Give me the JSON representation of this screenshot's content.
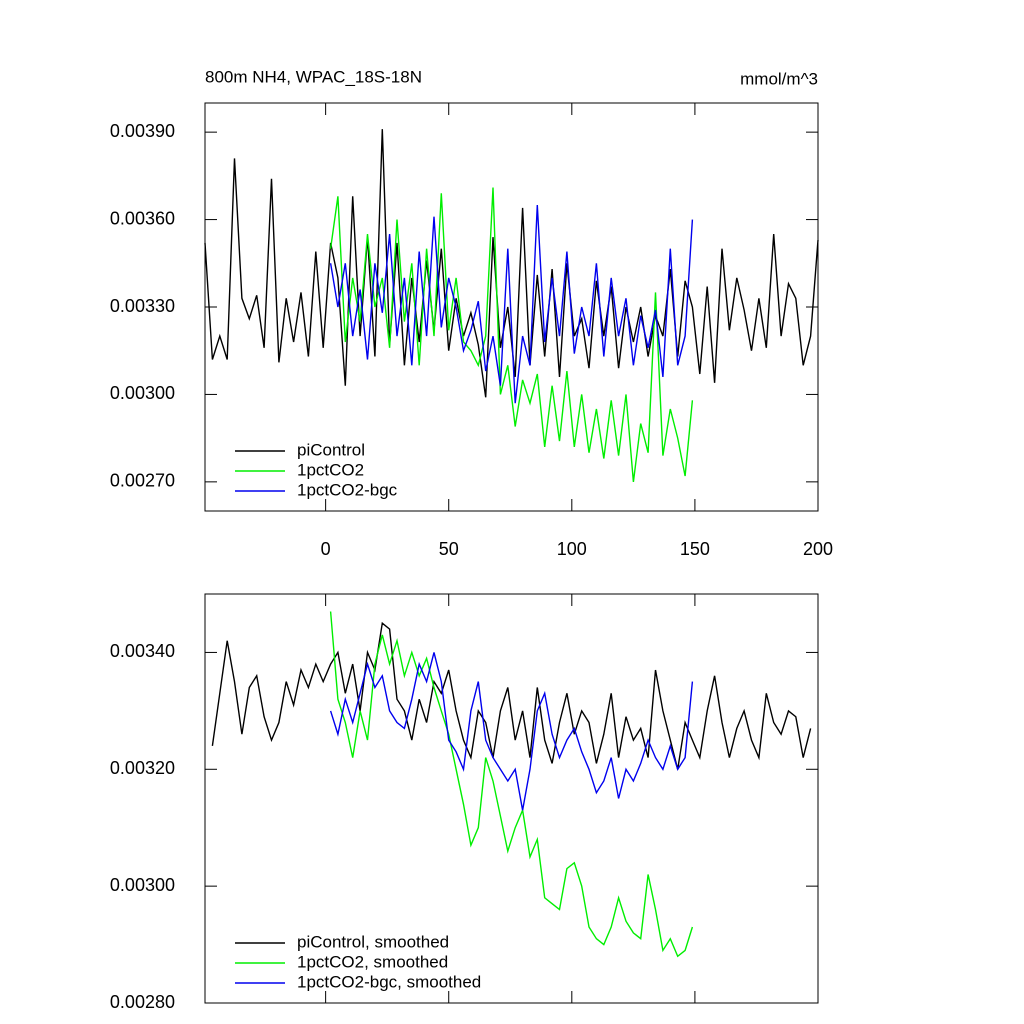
{
  "chart_data": [
    {
      "type": "line",
      "title": "800m NH4, WPAC_18S-18N",
      "units": "mmol/m^3",
      "xlim": [
        -49,
        200
      ],
      "xticks": [
        0,
        50,
        100,
        150,
        200
      ],
      "ylim": [
        0.0026,
        0.004
      ],
      "yticks": [
        {
          "value": 0.0027,
          "label": "0.00270"
        },
        {
          "value": 0.003,
          "label": "0.00300"
        },
        {
          "value": 0.0033,
          "label": "0.00330"
        },
        {
          "value": 0.0036,
          "label": "0.00360"
        },
        {
          "value": 0.0039,
          "label": "0.00390"
        }
      ],
      "legend": "lower left",
      "x": [
        -49,
        -46,
        -43,
        -40,
        -37,
        -34,
        -31,
        -28,
        -25,
        -22,
        -19,
        -16,
        -13,
        -10,
        -7,
        -4,
        -1,
        2,
        5,
        8,
        11,
        14,
        17,
        20,
        23,
        26,
        29,
        32,
        35,
        38,
        41,
        44,
        47,
        50,
        53,
        56,
        59,
        62,
        65,
        68,
        71,
        74,
        77,
        80,
        83,
        86,
        89,
        92,
        95,
        98,
        101,
        104,
        107,
        110,
        113,
        116,
        119,
        122,
        125,
        128,
        131,
        134,
        137,
        140,
        143,
        146,
        149,
        152,
        155,
        158,
        161,
        164,
        167,
        170,
        173,
        176,
        179,
        182,
        185,
        188,
        191,
        194,
        197,
        200
      ],
      "series": [
        {
          "name": "piControl",
          "color": "#000000",
          "values": [
            0.00352,
            0.00312,
            0.0032,
            0.00312,
            0.00381,
            0.00333,
            0.00326,
            0.00334,
            0.00316,
            0.00374,
            0.00311,
            0.00333,
            0.00318,
            0.00335,
            0.00313,
            0.00349,
            0.00316,
            0.00352,
            0.0034,
            0.00303,
            0.00368,
            0.0032,
            0.00354,
            0.00313,
            0.00391,
            0.00317,
            0.00352,
            0.0031,
            0.0034,
            0.00318,
            0.00346,
            0.00322,
            0.0035,
            0.00315,
            0.00333,
            0.0032,
            0.00328,
            0.00317,
            0.00299,
            0.00354,
            0.00316,
            0.0033,
            0.00306,
            0.00364,
            0.0031,
            0.00341,
            0.00313,
            0.00343,
            0.00306,
            0.00345,
            0.0032,
            0.00326,
            0.00309,
            0.00339,
            0.0032,
            0.00337,
            0.00309,
            0.0033,
            0.00318,
            0.0033,
            0.00313,
            0.00327,
            0.0032,
            0.00343,
            0.00313,
            0.00339,
            0.0033,
            0.00307,
            0.00337,
            0.00304,
            0.0035,
            0.00322,
            0.0034,
            0.00329,
            0.00315,
            0.00333,
            0.00316,
            0.00355,
            0.0032,
            0.00338,
            0.00333,
            0.0031,
            0.0032,
            0.00353
          ]
        },
        {
          "name": "1pctCO2",
          "color": "#00ee00",
          "values": [
            null,
            null,
            null,
            null,
            null,
            null,
            null,
            null,
            null,
            null,
            null,
            null,
            null,
            null,
            null,
            null,
            null,
            0.0035,
            0.00368,
            0.00318,
            0.0034,
            0.00325,
            0.00355,
            0.0033,
            0.0034,
            0.00316,
            0.0036,
            0.00325,
            0.00345,
            0.0031,
            0.0035,
            0.0032,
            0.00369,
            0.00322,
            0.0034,
            0.00318,
            0.00315,
            0.0031,
            0.0032,
            0.00371,
            0.003,
            0.0031,
            0.00289,
            0.00305,
            0.00297,
            0.00307,
            0.00282,
            0.00303,
            0.00284,
            0.00308,
            0.00282,
            0.003,
            0.0028,
            0.00295,
            0.00278,
            0.00298,
            0.00279,
            0.003,
            0.0027,
            0.0029,
            0.0028,
            0.00335,
            0.00279,
            0.00295,
            0.00285,
            0.00272,
            0.00298,
            null,
            null,
            null,
            null,
            null,
            null,
            null,
            null,
            null,
            null,
            null,
            null,
            null,
            null,
            null,
            null,
            null
          ]
        },
        {
          "name": "1pctCO2-bgc",
          "color": "#0000ee",
          "values": [
            null,
            null,
            null,
            null,
            null,
            null,
            null,
            null,
            null,
            null,
            null,
            null,
            null,
            null,
            null,
            null,
            null,
            0.00345,
            0.0033,
            0.00345,
            0.0032,
            0.00336,
            0.00312,
            0.00345,
            0.00328,
            0.00355,
            0.0032,
            0.0034,
            0.0031,
            0.00349,
            0.0032,
            0.00361,
            0.00323,
            0.0034,
            0.0033,
            0.00315,
            0.00322,
            0.00332,
            0.00308,
            0.0032,
            0.00303,
            0.0035,
            0.00297,
            0.0032,
            0.0031,
            0.00365,
            0.00318,
            0.0034,
            0.0032,
            0.00349,
            0.00314,
            0.0033,
            0.0032,
            0.00345,
            0.00313,
            0.0034,
            0.0032,
            0.00333,
            0.0031,
            0.00327,
            0.00316,
            0.00329,
            0.00306,
            0.0035,
            0.0031,
            0.0032,
            0.0036,
            null,
            null,
            null,
            null,
            null,
            null,
            null,
            null,
            null,
            null,
            null,
            null,
            null,
            null,
            null,
            null,
            null
          ]
        }
      ]
    },
    {
      "type": "line",
      "xlim": [
        -49,
        200
      ],
      "ylim": [
        0.0028,
        0.0035
      ],
      "yticks": [
        {
          "value": 0.0028,
          "label": "0.00280"
        },
        {
          "value": 0.003,
          "label": "0.00300"
        },
        {
          "value": 0.0032,
          "label": "0.00320"
        },
        {
          "value": 0.0034,
          "label": "0.00340"
        }
      ],
      "legend": "lower left",
      "x": [
        -49,
        -46,
        -43,
        -40,
        -37,
        -34,
        -31,
        -28,
        -25,
        -22,
        -19,
        -16,
        -13,
        -10,
        -7,
        -4,
        -1,
        2,
        5,
        8,
        11,
        14,
        17,
        20,
        23,
        26,
        29,
        32,
        35,
        38,
        41,
        44,
        47,
        50,
        53,
        56,
        59,
        62,
        65,
        68,
        71,
        74,
        77,
        80,
        83,
        86,
        89,
        92,
        95,
        98,
        101,
        104,
        107,
        110,
        113,
        116,
        119,
        122,
        125,
        128,
        131,
        134,
        137,
        140,
        143,
        146,
        149,
        152,
        155,
        158,
        161,
        164,
        167,
        170,
        173,
        176,
        179,
        182,
        185,
        188,
        191,
        194,
        197,
        200
      ],
      "series": [
        {
          "name": "piControl, smoothed",
          "color": "#000000",
          "values": [
            null,
            0.00324,
            0.00333,
            0.00342,
            0.00335,
            0.00326,
            0.00334,
            0.00336,
            0.00329,
            0.00325,
            0.00328,
            0.00335,
            0.00331,
            0.00337,
            0.00334,
            0.00338,
            0.00335,
            0.00338,
            0.0034,
            0.00333,
            0.00338,
            0.0033,
            0.0034,
            0.00337,
            0.00345,
            0.00344,
            0.00332,
            0.0033,
            0.00325,
            0.00332,
            0.00328,
            0.00335,
            0.00333,
            0.00337,
            0.0033,
            0.00325,
            0.00322,
            0.0033,
            0.00328,
            0.00322,
            0.0033,
            0.00334,
            0.00325,
            0.0033,
            0.00322,
            0.00334,
            0.00325,
            0.00321,
            0.00328,
            0.00333,
            0.00326,
            0.0033,
            0.00328,
            0.00321,
            0.00326,
            0.00333,
            0.00322,
            0.00329,
            0.00325,
            0.00327,
            0.00322,
            0.00337,
            0.0033,
            0.00325,
            0.0032,
            0.00328,
            0.00325,
            0.00322,
            0.0033,
            0.00336,
            0.00328,
            0.00322,
            0.00327,
            0.0033,
            0.00325,
            0.00322,
            0.00333,
            0.00328,
            0.00326,
            0.0033,
            0.00329,
            0.00322,
            0.00327,
            null
          ]
        },
        {
          "name": "1pctCO2, smoothed",
          "color": "#00ee00",
          "values": [
            null,
            null,
            null,
            null,
            null,
            null,
            null,
            null,
            null,
            null,
            null,
            null,
            null,
            null,
            null,
            null,
            null,
            0.00347,
            0.00332,
            0.00328,
            0.00322,
            0.0033,
            0.00325,
            0.00338,
            0.00343,
            0.00338,
            0.00342,
            0.00336,
            0.0034,
            0.00336,
            0.00339,
            0.00334,
            0.0033,
            0.00326,
            0.0032,
            0.00314,
            0.00307,
            0.0031,
            0.00322,
            0.00318,
            0.00312,
            0.00306,
            0.0031,
            0.00313,
            0.00305,
            0.00308,
            0.00298,
            0.00297,
            0.00296,
            0.00303,
            0.00304,
            0.003,
            0.00293,
            0.00291,
            0.0029,
            0.00293,
            0.00298,
            0.00294,
            0.00292,
            0.00291,
            0.00302,
            0.00296,
            0.00289,
            0.00291,
            0.00288,
            0.00289,
            0.00293,
            null,
            null,
            null,
            null,
            null,
            null,
            null,
            null,
            null,
            null,
            null,
            null,
            null,
            null,
            null,
            null,
            null
          ]
        },
        {
          "name": "1pctCO2-bgc, smoothed",
          "color": "#0000ee",
          "values": [
            null,
            null,
            null,
            null,
            null,
            null,
            null,
            null,
            null,
            null,
            null,
            null,
            null,
            null,
            null,
            null,
            null,
            0.0033,
            0.00326,
            0.00332,
            0.00328,
            0.00333,
            0.00338,
            0.00334,
            0.00336,
            0.0033,
            0.00328,
            0.00327,
            0.00332,
            0.00338,
            0.00335,
            0.0034,
            0.00335,
            0.00325,
            0.00323,
            0.0032,
            0.0033,
            0.00335,
            0.00325,
            0.00322,
            0.0032,
            0.00318,
            0.0032,
            0.00313,
            0.0032,
            0.0033,
            0.00333,
            0.00326,
            0.00322,
            0.00325,
            0.00327,
            0.00323,
            0.0032,
            0.00316,
            0.00318,
            0.00322,
            0.00315,
            0.0032,
            0.00318,
            0.00321,
            0.00325,
            0.00322,
            0.0032,
            0.00324,
            0.0032,
            0.00322,
            0.00335,
            null,
            null,
            null,
            null,
            null,
            null,
            null,
            null,
            null,
            null,
            null,
            null,
            null,
            null,
            null,
            null,
            null
          ]
        }
      ]
    }
  ]
}
